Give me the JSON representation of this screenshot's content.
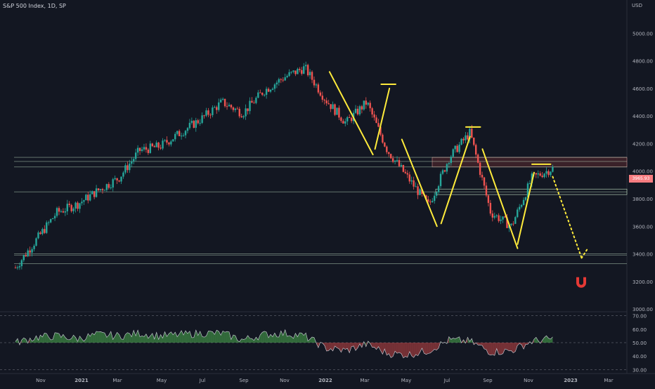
{
  "header": {
    "title": "S&P 500 Index, 1D, SP",
    "currency": "USD"
  },
  "price_tag": "3965.93",
  "chart_data": [
    {
      "type": "line",
      "title": "S&P 500 Index, 1D, SP",
      "ylabel": "USD",
      "y_ticks": [
        "3000.00",
        "3200.00",
        "3400.00",
        "3600.00",
        "3800.00",
        "4000.00",
        "4200.00",
        "4400.00",
        "4600.00",
        "4800.00",
        "5000.00"
      ],
      "ylim": [
        2980,
        5180
      ],
      "x_ticks": [
        "Nov",
        "2021",
        "Mar",
        "May",
        "Jul",
        "Sep",
        "Nov",
        "2022",
        "Mar",
        "May",
        "Jul",
        "Sep",
        "Nov",
        "2023",
        "Mar"
      ],
      "series": [
        {
          "x": [
            "2020-10",
            "2020-11",
            "2020-12",
            "2021-01",
            "2021-02",
            "2021-03",
            "2021-04",
            "2021-05",
            "2021-06",
            "2021-07",
            "2021-08",
            "2021-09",
            "2021-10",
            "2021-11",
            "2021-12",
            "2022-01",
            "2022-02",
            "2022-03",
            "2022-04",
            "2022-05",
            "2022-06",
            "2022-07",
            "2022-08",
            "2022-09",
            "2022-10",
            "2022-11",
            "2022-12"
          ],
          "values": [
            3300,
            3500,
            3700,
            3760,
            3860,
            3950,
            4150,
            4180,
            4280,
            4380,
            4500,
            4420,
            4580,
            4680,
            4750,
            4520,
            4350,
            4500,
            4150,
            3950,
            3750,
            4100,
            4280,
            3700,
            3600,
            3950,
            4020
          ]
        }
      ],
      "support_levels": [
        3330,
        3390,
        3400,
        3850,
        4030,
        4070,
        4100
      ],
      "annotation_color": "#ffeb3b",
      "up_color": "#26a69a",
      "down_color": "#ef5350"
    },
    {
      "type": "area",
      "y_ticks": [
        "30.00",
        "40.00",
        "50.00",
        "60.00",
        "70.00"
      ],
      "ylim": [
        27,
        73
      ],
      "reference_levels": [
        30,
        50,
        70
      ],
      "series": [
        {
          "x": [
            "2020-10",
            "2020-11",
            "2020-12",
            "2021-01",
            "2021-02",
            "2021-03",
            "2021-04",
            "2021-05",
            "2021-06",
            "2021-07",
            "2021-08",
            "2021-09",
            "2021-10",
            "2021-11",
            "2021-12",
            "2022-01",
            "2022-02",
            "2022-03",
            "2022-04",
            "2022-05",
            "2022-06",
            "2022-07",
            "2022-08",
            "2022-09",
            "2022-10",
            "2022-11",
            "2022-12"
          ],
          "values": [
            50,
            54,
            55,
            53,
            56,
            55,
            57,
            55,
            56,
            57,
            57,
            52,
            56,
            57,
            55,
            46,
            44,
            49,
            42,
            41,
            44,
            52,
            51,
            43,
            44,
            51,
            53
          ]
        }
      ],
      "above_color": "#4caf50",
      "below_color": "#ef5350"
    }
  ]
}
